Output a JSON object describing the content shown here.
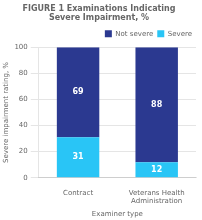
{
  "chart_data": {
    "type": "bar",
    "title": "FIGURE 1 Examinations Indicating\nSevere Impairment, %",
    "categories": [
      "Contract",
      "Veterans Health\nAdministration"
    ],
    "series": [
      {
        "name": "Severe",
        "color": "#29c5f6",
        "values": [
          31,
          12
        ]
      },
      {
        "name": "Not severe",
        "color": "#2b3990",
        "values": [
          69,
          88
        ]
      }
    ],
    "xlabel": "Examiner type",
    "ylabel": "Severe impairment rating, %",
    "ylim": [
      0,
      100
    ],
    "yticks": [
      0,
      20,
      40,
      60,
      80,
      100
    ],
    "stacked": true,
    "data_labels": true,
    "grid": true,
    "legend": "upper right"
  }
}
